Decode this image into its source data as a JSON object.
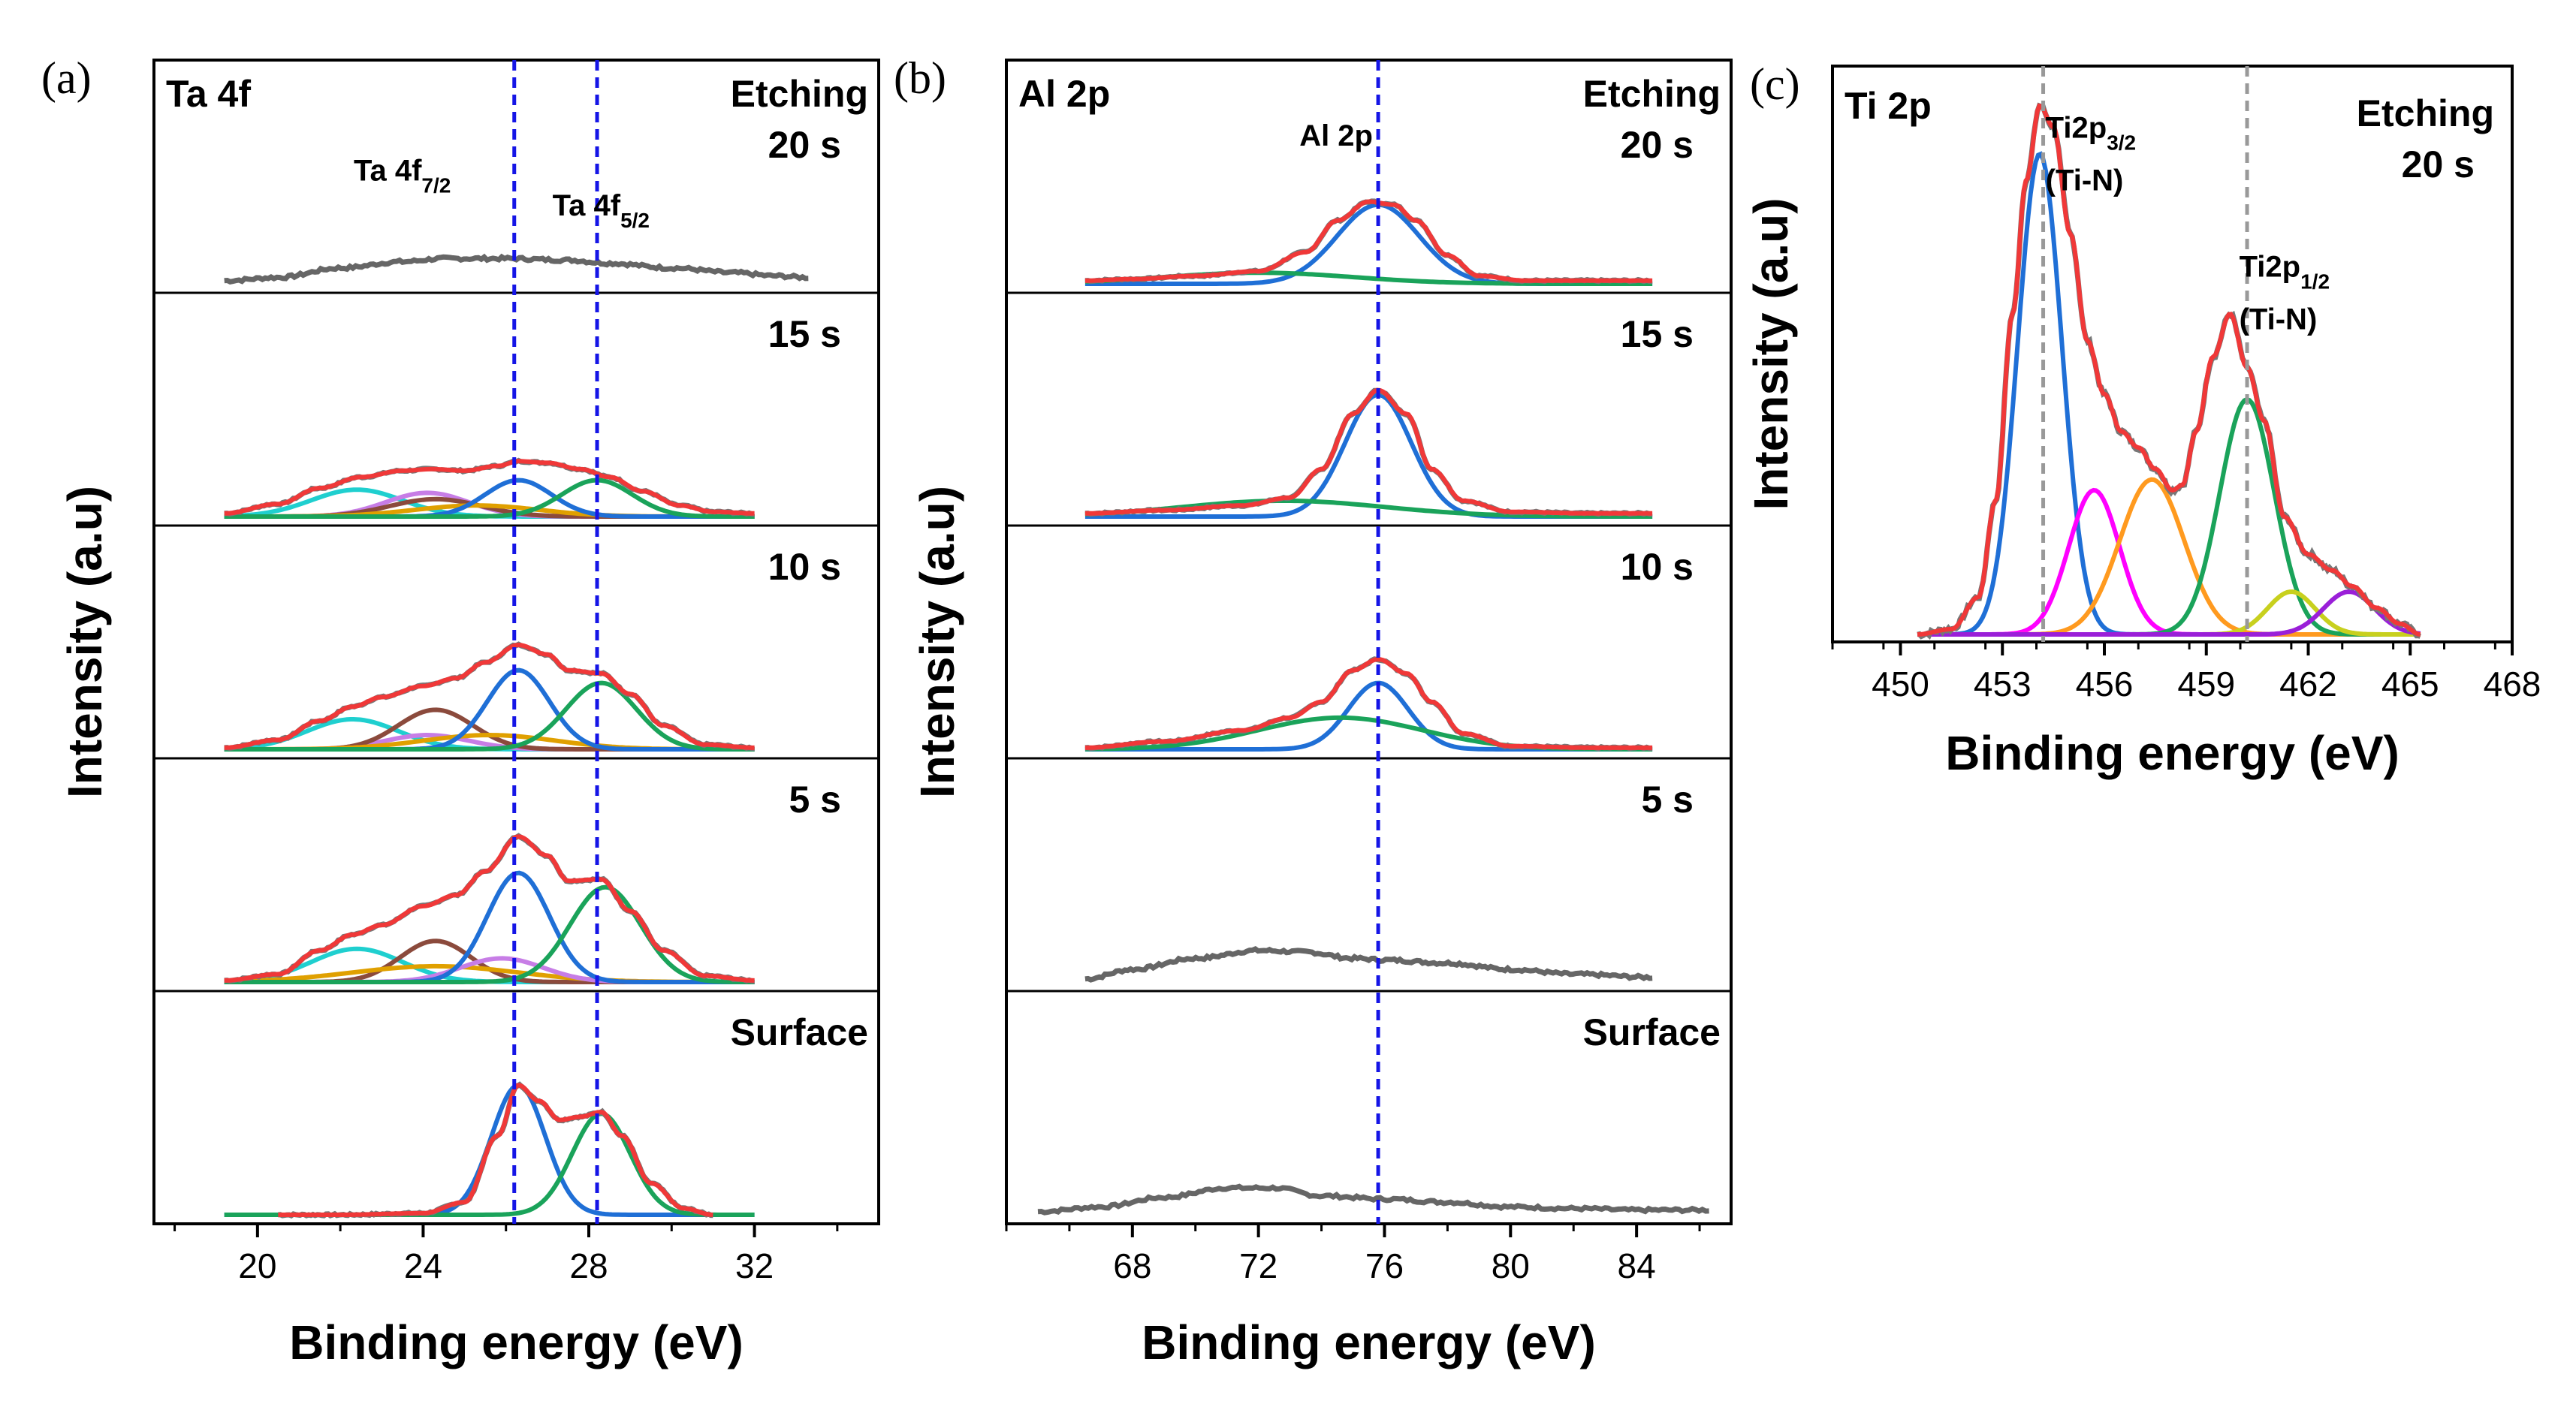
{
  "chart_data": [
    {
      "type": "line",
      "panel_letter": "(a)",
      "title": "Ta 4f",
      "xlabel": "Binding energy (eV)",
      "ylabel": "Intensity (a.u)",
      "xlim": [
        17.5,
        35
      ],
      "xticks": [
        "20",
        "24",
        "28",
        "32"
      ],
      "xtick_values": [
        20,
        24,
        28,
        32
      ],
      "reference_lines": {
        "style": "blue-dashed",
        "x": [
          26.2,
          28.2
        ]
      },
      "peak_labels": [
        {
          "text": "Ta 4f",
          "sub": "7/2",
          "x": 24.5,
          "y": 0.45
        },
        {
          "text": "Ta 4f",
          "sub": "5/2",
          "x": 29.3,
          "y": 0.3
        }
      ],
      "stacked_panels": [
        {
          "label": "20 s",
          "label2": "Etching",
          "raw": {
            "x": [
              19.2,
              20.5,
              22,
              23.5,
              24.5,
              26,
              27.5,
              28.5,
              30,
              31.5,
              32.5,
              33.3
            ],
            "y": [
              0.02,
              0.04,
              0.1,
              0.14,
              0.16,
              0.16,
              0.15,
              0.13,
              0.1,
              0.07,
              0.05,
              0.04
            ]
          },
          "fits": []
        },
        {
          "label": "15 s",
          "envelope": {
            "x": [
              19.2,
              20.5,
              21.5,
              22.5,
              23.5,
              24.2,
              25,
              25.8,
              26.3,
              27,
              27.8,
              28.5,
              29.3,
              30.2,
              31,
              32
            ],
            "y": [
              0.02,
              0.08,
              0.18,
              0.25,
              0.29,
              0.3,
              0.29,
              0.32,
              0.35,
              0.34,
              0.3,
              0.25,
              0.16,
              0.07,
              0.03,
              0.02
            ]
          },
          "fits": [
            {
              "center": 22.4,
              "height": 0.17,
              "width": 1.1,
              "color": "#1fcfcf"
            },
            {
              "center": 24.1,
              "height": 0.15,
              "width": 1.0,
              "color": "#c77de6"
            },
            {
              "center": 24.3,
              "height": 0.11,
              "width": 1.1,
              "color": "#8b4a3c"
            },
            {
              "center": 25.3,
              "height": 0.07,
              "width": 1.5,
              "color": "#e0a000"
            },
            {
              "center": 26.3,
              "height": 0.23,
              "width": 0.8,
              "color": "#1f6fd6"
            },
            {
              "center": 28.2,
              "height": 0.23,
              "width": 0.85,
              "color": "#1aa35a"
            }
          ]
        },
        {
          "label": "10 s",
          "envelope": {
            "x": [
              19.2,
              20.5,
              21.5,
              22.3,
              23,
              24,
              24.8,
              25.5,
              26.3,
              27,
              27.5,
              28.3,
              29,
              29.8,
              30.8,
              32
            ],
            "y": [
              0.01,
              0.06,
              0.18,
              0.27,
              0.33,
              0.4,
              0.45,
              0.55,
              0.66,
              0.6,
              0.5,
              0.48,
              0.35,
              0.15,
              0.03,
              0.01
            ]
          },
          "fits": [
            {
              "center": 22.3,
              "height": 0.19,
              "width": 1.1,
              "color": "#1fcfcf"
            },
            {
              "center": 24.1,
              "height": 0.09,
              "width": 1.0,
              "color": "#c77de6"
            },
            {
              "center": 24.3,
              "height": 0.25,
              "width": 0.9,
              "color": "#8b4a3c"
            },
            {
              "center": 25.6,
              "height": 0.09,
              "width": 1.6,
              "color": "#e0a000"
            },
            {
              "center": 26.3,
              "height": 0.5,
              "width": 0.75,
              "color": "#1f6fd6"
            },
            {
              "center": 28.3,
              "height": 0.42,
              "width": 0.85,
              "color": "#1aa35a"
            }
          ]
        },
        {
          "label": "5 s",
          "envelope": {
            "x": [
              19.2,
              20.5,
              21.5,
              22.3,
              23,
              24,
              24.8,
              25.5,
              26.3,
              27,
              27.5,
              28.3,
              29,
              29.8,
              30.8,
              32
            ],
            "y": [
              0.01,
              0.05,
              0.2,
              0.3,
              0.36,
              0.48,
              0.55,
              0.7,
              0.92,
              0.8,
              0.64,
              0.65,
              0.45,
              0.2,
              0.04,
              0.01
            ]
          },
          "fits": [
            {
              "center": 22.4,
              "height": 0.21,
              "width": 1.1,
              "color": "#1fcfcf"
            },
            {
              "center": 24.3,
              "height": 0.26,
              "width": 0.85,
              "color": "#8b4a3c"
            },
            {
              "center": 24.3,
              "height": 0.1,
              "width": 2.0,
              "color": "#e0a000"
            },
            {
              "center": 25.9,
              "height": 0.15,
              "width": 1.0,
              "color": "#c77de6"
            },
            {
              "center": 26.3,
              "height": 0.69,
              "width": 0.75,
              "color": "#1f6fd6"
            },
            {
              "center": 28.4,
              "height": 0.6,
              "width": 0.85,
              "color": "#1aa35a"
            }
          ]
        },
        {
          "label": "Surface",
          "envelope": {
            "x": [
              20.5,
              22,
              24,
              25,
              25.8,
              26.3,
              26.8,
              27.3,
              27.8,
              28.3,
              28.8,
              29.5,
              30.3,
              31
            ],
            "y": [
              0.0,
              0.0,
              0.01,
              0.08,
              0.5,
              0.82,
              0.72,
              0.6,
              0.62,
              0.65,
              0.5,
              0.2,
              0.04,
              0.0
            ]
          },
          "fits": [
            {
              "center": 26.3,
              "height": 0.82,
              "width": 0.65,
              "color": "#1f6fd6"
            },
            {
              "center": 28.3,
              "height": 0.64,
              "width": 0.7,
              "color": "#1aa35a"
            }
          ]
        }
      ]
    },
    {
      "type": "line",
      "panel_letter": "(b)",
      "title": "Al 2p",
      "xlabel": "Binding energy (eV)",
      "ylabel": "Intensity (a.u)",
      "xlim": [
        64,
        87
      ],
      "xticks": [
        "68",
        "72",
        "76",
        "80",
        "84"
      ],
      "xtick_values": [
        68,
        72,
        76,
        80,
        84
      ],
      "reference_lines": {
        "style": "blue-dashed",
        "x": [
          75.8
        ]
      },
      "peak_labels": [
        {
          "text": "Al 2p",
          "x": 73.3,
          "y": 0.6
        }
      ],
      "stacked_panels": [
        {
          "label": "20 s",
          "label2": "Etching",
          "envelope": {
            "x": [
              66.5,
              68,
              70,
              72,
              73.5,
              74.5,
              75.5,
              76.3,
              77,
              78,
              79,
              80.5,
              82.5,
              84.5
            ],
            "y": [
              0.02,
              0.03,
              0.05,
              0.08,
              0.2,
              0.4,
              0.52,
              0.5,
              0.4,
              0.18,
              0.05,
              0.02,
              0.02,
              0.02
            ]
          },
          "fits": [
            {
              "center": 75.8,
              "height": 0.5,
              "width": 1.3,
              "color": "#1f6fd6"
            },
            {
              "center": 72.0,
              "height": 0.07,
              "width": 3.0,
              "color": "#1aa35a"
            }
          ]
        },
        {
          "label": "15 s",
          "envelope": {
            "x": [
              66.5,
              69,
              71.5,
              73,
              74,
              75,
              75.8,
              76.7,
              77.5,
              78.5,
              80,
              82.5,
              84.5
            ],
            "y": [
              0.02,
              0.04,
              0.07,
              0.12,
              0.3,
              0.65,
              0.8,
              0.65,
              0.3,
              0.1,
              0.03,
              0.02,
              0.02
            ]
          },
          "fits": [
            {
              "center": 75.8,
              "height": 0.77,
              "width": 1.05,
              "color": "#1f6fd6"
            },
            {
              "center": 72.8,
              "height": 0.1,
              "width": 3.2,
              "color": "#1aa35a"
            }
          ]
        },
        {
          "label": "10 s",
          "envelope": {
            "x": [
              66.5,
              69,
              71.5,
              73,
              74,
              75,
              75.8,
              76.7,
              77.5,
              78.5,
              80,
              82.5,
              84.5
            ],
            "y": [
              0.01,
              0.05,
              0.12,
              0.2,
              0.3,
              0.5,
              0.57,
              0.48,
              0.3,
              0.1,
              0.02,
              0.01,
              0.01
            ]
          },
          "fits": [
            {
              "center": 75.8,
              "height": 0.42,
              "width": 0.95,
              "color": "#1f6fd6"
            },
            {
              "center": 74.6,
              "height": 0.2,
              "width": 2.6,
              "color": "#1aa35a"
            }
          ]
        },
        {
          "label": "5 s",
          "raw": {
            "x": [
              66.5,
              68,
              70,
              72,
              73.5,
              75,
              76,
              78,
              80,
              82,
              84.5
            ],
            "y": [
              0.02,
              0.08,
              0.15,
              0.2,
              0.19,
              0.15,
              0.14,
              0.12,
              0.08,
              0.05,
              0.03
            ]
          },
          "fits": []
        },
        {
          "label": "Surface",
          "raw": {
            "x": [
              65,
              67,
              69,
              71,
              72.5,
              74,
              76,
              78,
              80,
              82,
              84,
              86.3
            ],
            "y": [
              0.02,
              0.05,
              0.11,
              0.17,
              0.17,
              0.12,
              0.1,
              0.08,
              0.05,
              0.04,
              0.03,
              0.03
            ]
          },
          "fits": []
        }
      ]
    },
    {
      "type": "line",
      "panel_letter": "(c)",
      "title": "Ti 2p",
      "label": "20 s",
      "label2": "Etching",
      "xlabel": "Binding energy (eV)",
      "ylabel": "Intensity (a.u)",
      "xlim": [
        448,
        468
      ],
      "ylim": [
        0,
        1.05
      ],
      "xticks": [
        "450",
        "453",
        "456",
        "459",
        "462",
        "465",
        "468"
      ],
      "xtick_values": [
        450,
        453,
        456,
        459,
        462,
        465,
        468
      ],
      "reference_lines": {
        "style": "grey-dashed",
        "x": [
          454.2,
          460.2
        ]
      },
      "peak_labels": [
        {
          "text": "Ti2p",
          "sub": "3/2",
          "sub2": "(Ti-N)",
          "x": 456.7,
          "y": 0.93
        },
        {
          "text": "Ti2p",
          "sub": "1/2",
          "sub2": "(Ti-N)",
          "x": 462.4,
          "y": 0.67
        }
      ],
      "envelope": {
        "x": [
          450.5,
          451.5,
          452.3,
          452.8,
          453.3,
          453.7,
          454.1,
          454.5,
          455,
          455.5,
          456,
          456.5,
          457,
          457.5,
          458,
          458.3,
          458.7,
          459.2,
          459.7,
          460.2,
          460.7,
          461.3,
          462,
          462.7,
          463.3,
          464,
          464.7,
          465.3
        ],
        "y": [
          0.0,
          0.01,
          0.07,
          0.25,
          0.6,
          0.85,
          0.99,
          0.95,
          0.75,
          0.55,
          0.45,
          0.38,
          0.35,
          0.31,
          0.27,
          0.28,
          0.38,
          0.52,
          0.6,
          0.5,
          0.4,
          0.22,
          0.15,
          0.12,
          0.09,
          0.05,
          0.02,
          0.0
        ]
      },
      "fits": [
        {
          "center": 454.1,
          "height": 0.9,
          "width": 0.65,
          "color": "#1f6fd6"
        },
        {
          "center": 455.7,
          "height": 0.27,
          "width": 0.75,
          "color": "#ff00ff"
        },
        {
          "center": 457.4,
          "height": 0.29,
          "width": 0.95,
          "color": "#ff9a1f"
        },
        {
          "center": 460.2,
          "height": 0.44,
          "width": 0.8,
          "color": "#1aa35a"
        },
        {
          "center": 461.5,
          "height": 0.08,
          "width": 0.7,
          "color": "#c8d01e"
        },
        {
          "center": 463.2,
          "height": 0.08,
          "width": 0.75,
          "color": "#9a1fd8"
        }
      ]
    }
  ]
}
